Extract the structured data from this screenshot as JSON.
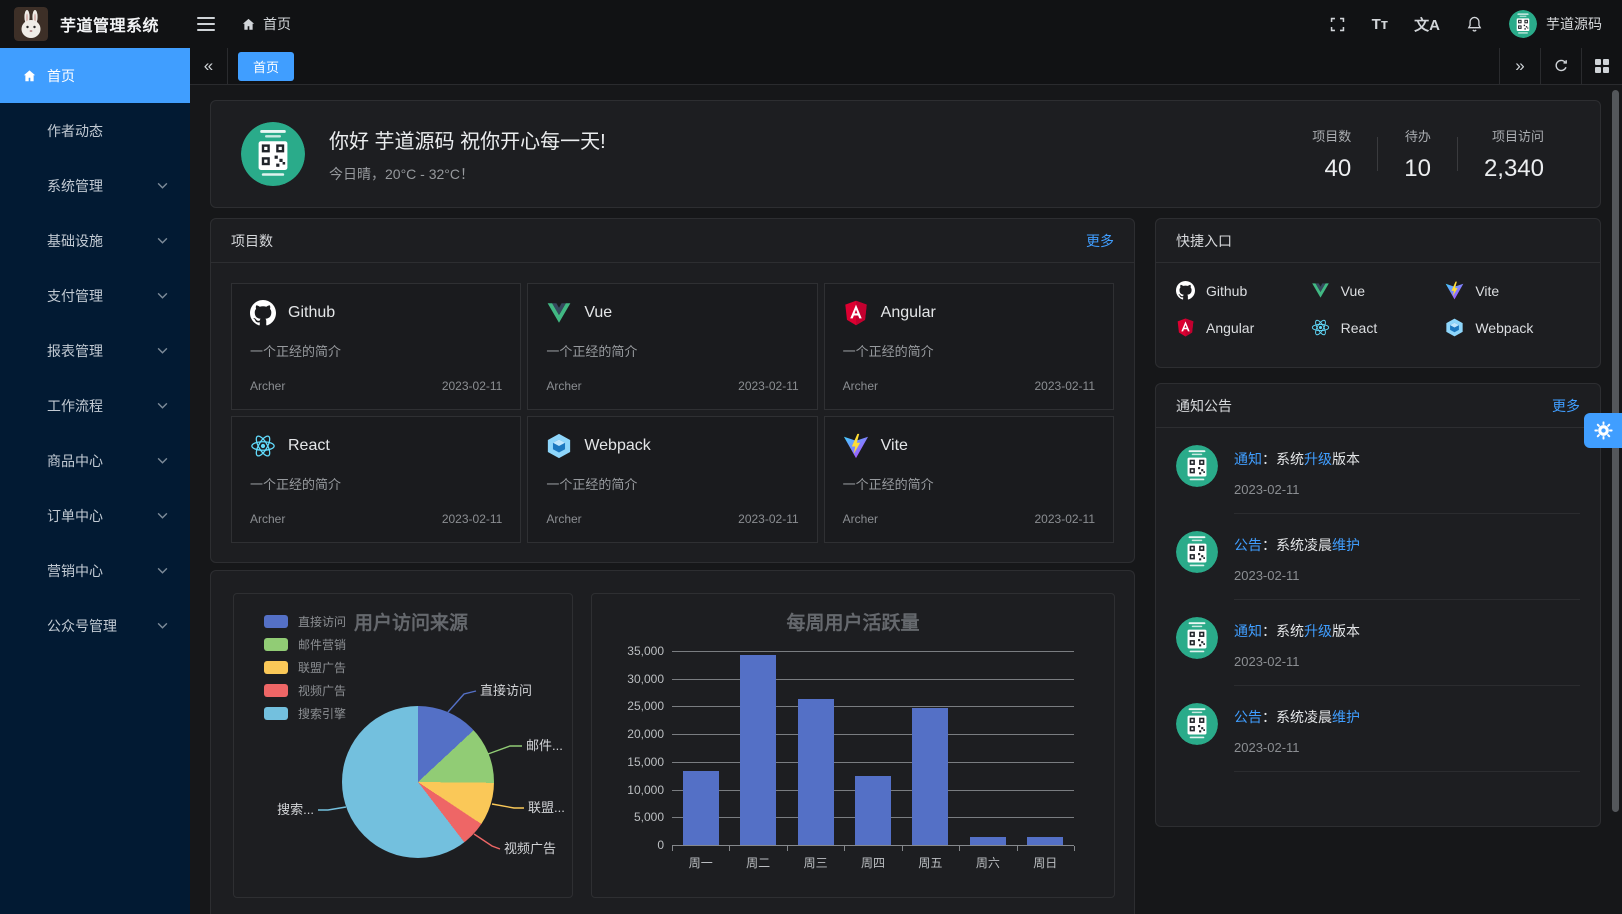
{
  "app": {
    "title": "芋道管理系统",
    "username": "芋道源码"
  },
  "header": {
    "breadcrumb_home": "首页",
    "icons": [
      "fullscreen-icon",
      "font-size-icon",
      "language-icon",
      "bell-icon"
    ],
    "font_size_icon_text": "Tт",
    "language_icon_text": "文A"
  },
  "tabbar": {
    "tabs": [
      {
        "label": "首页",
        "active": true
      }
    ]
  },
  "sidebar": {
    "items": [
      {
        "label": "首页",
        "icon": "home",
        "active": true,
        "children": false
      },
      {
        "label": "作者动态",
        "active": false,
        "children": false
      },
      {
        "label": "系统管理",
        "active": false,
        "children": true
      },
      {
        "label": "基础设施",
        "active": false,
        "children": true
      },
      {
        "label": "支付管理",
        "active": false,
        "children": true
      },
      {
        "label": "报表管理",
        "active": false,
        "children": true
      },
      {
        "label": "工作流程",
        "active": false,
        "children": true
      },
      {
        "label": "商品中心",
        "active": false,
        "children": true
      },
      {
        "label": "订单中心",
        "active": false,
        "children": true
      },
      {
        "label": "营销中心",
        "active": false,
        "children": true
      },
      {
        "label": "公众号管理",
        "active": false,
        "children": true
      }
    ]
  },
  "welcome": {
    "greeting": "你好 芋道源码 祝你开心每一天!",
    "weather": "今日晴，20°C - 32°C！",
    "stats": [
      {
        "label": "项目数",
        "value": "40"
      },
      {
        "label": "待办",
        "value": "10"
      },
      {
        "label": "项目访问",
        "value": "2,340"
      }
    ]
  },
  "projects_card": {
    "title": "项目数",
    "more": "更多",
    "projects": [
      {
        "name": "Github",
        "icon": "github",
        "desc": "一个正经的简介",
        "author": "Archer",
        "date": "2023-02-11"
      },
      {
        "name": "Vue",
        "icon": "vue",
        "desc": "一个正经的简介",
        "author": "Archer",
        "date": "2023-02-11"
      },
      {
        "name": "Angular",
        "icon": "angular",
        "desc": "一个正经的简介",
        "author": "Archer",
        "date": "2023-02-11"
      },
      {
        "name": "React",
        "icon": "react",
        "desc": "一个正经的简介",
        "author": "Archer",
        "date": "2023-02-11"
      },
      {
        "name": "Webpack",
        "icon": "webpack",
        "desc": "一个正经的简介",
        "author": "Archer",
        "date": "2023-02-11"
      },
      {
        "name": "Vite",
        "icon": "vite",
        "desc": "一个正经的简介",
        "author": "Archer",
        "date": "2023-02-11"
      }
    ]
  },
  "shortcuts": {
    "title": "快捷入口",
    "items": [
      {
        "label": "Github",
        "icon": "github"
      },
      {
        "label": "Vue",
        "icon": "vue"
      },
      {
        "label": "Vite",
        "icon": "vite"
      },
      {
        "label": "Angular",
        "icon": "angular"
      },
      {
        "label": "React",
        "icon": "react"
      },
      {
        "label": "Webpack",
        "icon": "webpack"
      }
    ]
  },
  "notices": {
    "title": "通知公告",
    "more": "更多",
    "items": [
      {
        "tag": "通知",
        "mid": "：系统",
        "hl": "升级",
        "post": "版本",
        "date": "2023-02-11"
      },
      {
        "tag": "公告",
        "mid": "：系统凌晨",
        "hl": "维护",
        "post": "",
        "date": "2023-02-11"
      },
      {
        "tag": "通知",
        "mid": "：系统",
        "hl": "升级",
        "post": "版本",
        "date": "2023-02-11"
      },
      {
        "tag": "公告",
        "mid": "：系统凌晨",
        "hl": "维护",
        "post": "",
        "date": "2023-02-11"
      }
    ]
  },
  "colors": {
    "primary": "#409eff",
    "sidebar_bg": "#021a33",
    "card_bg": "#1d1e21",
    "page_bg": "#161719",
    "avatar_green": "#2aab8a"
  },
  "chart_data": [
    {
      "type": "pie",
      "title": "用户访问来源",
      "legend_position": "left",
      "legend": [
        "直接访问",
        "邮件营销",
        "联盟广告",
        "视频广告",
        "搜索引擎"
      ],
      "series": [
        {
          "name": "直接访问",
          "value": 335
        },
        {
          "name": "邮件营销",
          "value": 310
        },
        {
          "name": "联盟广告",
          "value": 234
        },
        {
          "name": "视频广告",
          "value": 135
        },
        {
          "name": "搜索引擎",
          "value": 1548
        }
      ],
      "callout_labels": [
        "直接访问",
        "邮件...",
        "联盟...",
        "视频广告",
        "搜索..."
      ],
      "colors": [
        "#5470c6",
        "#91cc75",
        "#fac858",
        "#ee6666",
        "#73c0de"
      ]
    },
    {
      "type": "bar",
      "title": "每周用户活跃量",
      "categories": [
        "周一",
        "周二",
        "周三",
        "周四",
        "周五",
        "周六",
        "周日"
      ],
      "values": [
        13300,
        34300,
        26300,
        12500,
        24700,
        1400,
        1400
      ],
      "xlabel": "",
      "ylabel": "",
      "ylim": [
        0,
        35000
      ],
      "ytick_step": 5000,
      "bar_color": "#5470c6",
      "grid": true
    }
  ]
}
